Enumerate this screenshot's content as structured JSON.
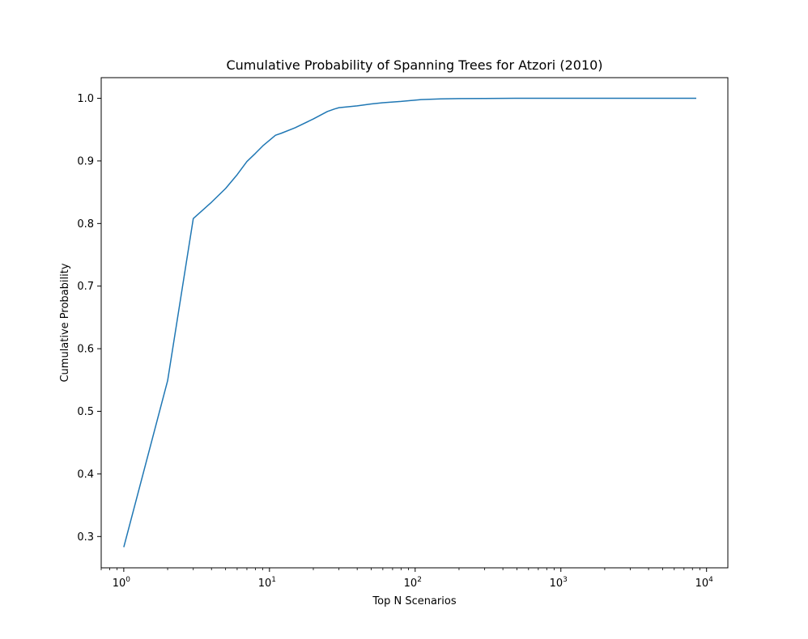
{
  "chart_data": {
    "type": "line",
    "title": "Cumulative Probability of Spanning Trees for Atzori (2010)",
    "xlabel": "Top N Scenarios",
    "ylabel": "Cumulative Probability",
    "xscale": "log",
    "xlim": [
      0.7,
      14000
    ],
    "ylim": [
      0.25,
      1.033
    ],
    "grid": false,
    "legend": "none",
    "colors": {
      "line": "#1f77b4",
      "frame": "#000000",
      "background": "#ffffff"
    },
    "x_ticks": [
      {
        "value": 1,
        "base": "10",
        "exp": "0"
      },
      {
        "value": 10,
        "base": "10",
        "exp": "1"
      },
      {
        "value": 100,
        "base": "10",
        "exp": "2"
      },
      {
        "value": 1000,
        "base": "10",
        "exp": "3"
      },
      {
        "value": 10000,
        "base": "10",
        "exp": "4"
      }
    ],
    "y_ticks": [
      "0.3",
      "0.4",
      "0.5",
      "0.6",
      "0.7",
      "0.8",
      "0.9",
      "1.0"
    ],
    "series": [
      {
        "x": [
          1,
          2,
          3,
          4,
          5,
          6,
          7,
          8,
          9,
          10,
          11,
          12,
          15,
          20,
          25,
          28,
          30,
          40,
          50,
          60,
          80,
          110,
          150,
          200,
          300,
          500,
          1000,
          3000,
          8500
        ],
        "y": [
          0.283,
          0.549,
          0.808,
          0.834,
          0.856,
          0.878,
          0.899,
          0.912,
          0.924,
          0.933,
          0.941,
          0.944,
          0.953,
          0.967,
          0.979,
          0.983,
          0.985,
          0.988,
          0.991,
          0.993,
          0.995,
          0.998,
          0.999,
          0.9995,
          0.9998,
          1.0,
          1.0,
          1.0,
          1.0
        ]
      }
    ]
  }
}
